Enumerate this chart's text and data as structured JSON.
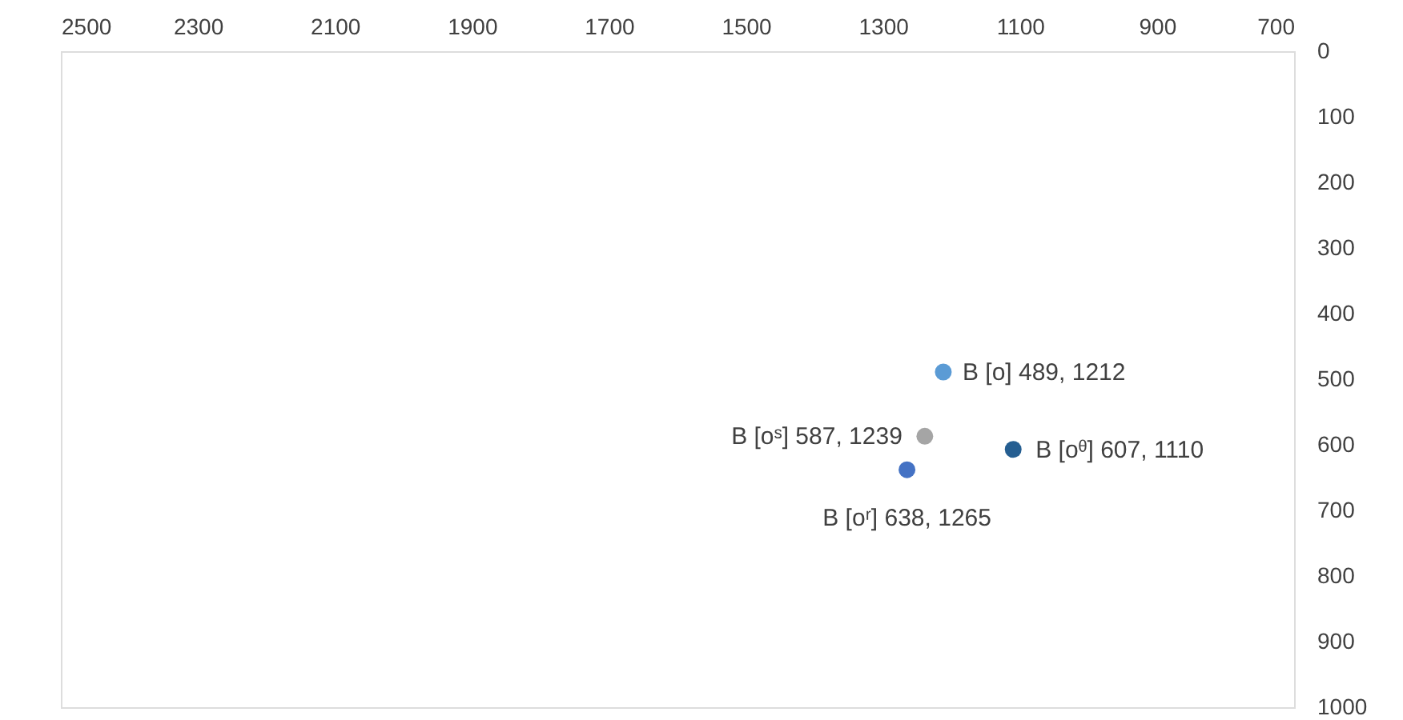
{
  "chart_data": {
    "type": "scatter",
    "xlim": [
      2500,
      700
    ],
    "xticks": [
      2500,
      2300,
      2100,
      1900,
      1700,
      1500,
      1300,
      1100,
      900,
      700
    ],
    "ylim": [
      1000,
      0
    ],
    "yticks": [
      0,
      100,
      200,
      300,
      400,
      500,
      600,
      700,
      800,
      900,
      1000
    ],
    "grid": false,
    "legend": false,
    "marker": "circle",
    "series": [
      {
        "color": "#5b9bd5",
        "x": [
          1212
        ],
        "values": [
          489
        ]
      },
      {
        "color": "#a5a5a5",
        "x": [
          1239
        ],
        "values": [
          587
        ]
      },
      {
        "color": "#255e91",
        "x": [
          1110
        ],
        "values": [
          607
        ]
      },
      {
        "color": "#4472c4",
        "x": [
          1265
        ],
        "values": [
          638
        ]
      }
    ],
    "annotations": [
      {
        "text": "B [o] 489, 1212",
        "x": 1212,
        "y": 489
      },
      {
        "text": "B [oˢ]  587, 1239",
        "x": 1239,
        "y": 587
      },
      {
        "text": "B [oᶿ] 607, 1110",
        "x": 1110,
        "y": 607
      },
      {
        "text": "B [oʳ] 638, 1265",
        "x": 1265,
        "y": 638
      }
    ]
  }
}
